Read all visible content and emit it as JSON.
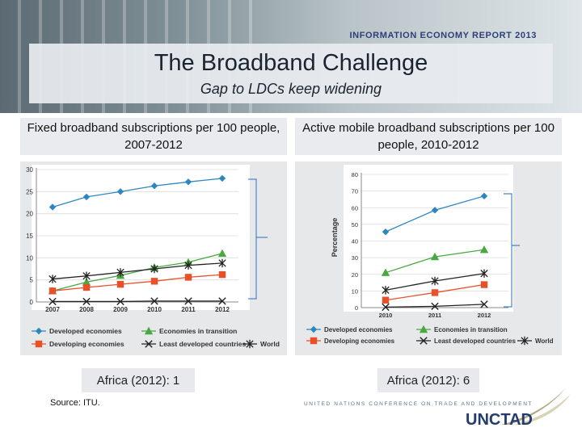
{
  "header": {
    "report_title": "INFORMATION ECONOMY REPORT 2013",
    "title": "The Broadband Challenge",
    "subtitle": "Gap to LDCs keep widening"
  },
  "colors": {
    "developed": "#2e86c1",
    "transition": "#4aa840",
    "developing": "#e8502a",
    "ldc": "#222222",
    "world": "#222222",
    "bracket": "#4a86c8"
  },
  "chart_data": [
    {
      "type": "line",
      "title": "Fixed broadband subscriptions per 100 people, 2007-2012",
      "x": [
        "2007",
        "2008",
        "2009",
        "2010",
        "2011",
        "2012"
      ],
      "ylim": [
        0,
        30
      ],
      "yticks": [
        "0",
        "5",
        "10",
        "15",
        "20",
        "25",
        "30"
      ],
      "ylabel": "",
      "xlabel": "",
      "grid": true,
      "series": [
        {
          "name": "Developed economies",
          "marker": "diamond",
          "color": "#2e86c1",
          "values": [
            21.5,
            23.8,
            25.0,
            26.3,
            27.2,
            28.0
          ]
        },
        {
          "name": "Economies in transition",
          "marker": "triangle",
          "color": "#4aa840",
          "values": [
            2.5,
            4.5,
            6.0,
            7.8,
            9.0,
            11.0
          ]
        },
        {
          "name": "Developing economies",
          "marker": "square",
          "color": "#e8502a",
          "values": [
            2.5,
            3.3,
            4.0,
            4.7,
            5.6,
            6.2
          ]
        },
        {
          "name": "Least developed countries",
          "marker": "x",
          "color": "#222222",
          "values": [
            0.1,
            0.1,
            0.1,
            0.2,
            0.2,
            0.2
          ]
        },
        {
          "name": "World",
          "marker": "star",
          "color": "#222222",
          "values": [
            5.2,
            5.9,
            6.7,
            7.5,
            8.3,
            8.8
          ]
        }
      ],
      "legend_labels": [
        "Developed economies",
        "Economies in transition",
        "Developing economies",
        "Least developed countries",
        "World"
      ],
      "note": "Africa (2012): 1"
    },
    {
      "type": "line",
      "title": "Active mobile broadband subscriptions per 100 people, 2010-2012",
      "x": [
        "2010",
        "2011",
        "2012"
      ],
      "ylim": [
        0,
        80
      ],
      "yticks": [
        "0",
        "10",
        "20",
        "30",
        "40",
        "50",
        "60",
        "70",
        "80"
      ],
      "ylabel": "Percentage",
      "xlabel": "",
      "grid": true,
      "series": [
        {
          "name": "Developed economies",
          "marker": "diamond",
          "color": "#2e86c1",
          "values": [
            45.5,
            58.5,
            67.0
          ]
        },
        {
          "name": "Economies in transition",
          "marker": "triangle",
          "color": "#4aa840",
          "values": [
            21.0,
            30.5,
            34.8
          ]
        },
        {
          "name": "Developing economies",
          "marker": "square",
          "color": "#e8502a",
          "values": [
            4.5,
            9.0,
            13.8
          ]
        },
        {
          "name": "Least developed countries",
          "marker": "x",
          "color": "#222222",
          "values": [
            0.3,
            0.8,
            2.0
          ]
        },
        {
          "name": "World",
          "marker": "star",
          "color": "#222222",
          "values": [
            10.5,
            16.0,
            20.5
          ]
        }
      ],
      "legend_labels": [
        "Developed economies",
        "Economies in transition",
        "Developing economies",
        "Least developed countries",
        "World"
      ],
      "note": "Africa (2012):  6"
    }
  ],
  "source": "Source: ITU.",
  "footer": {
    "org": "UNITED NATIONS CONFERENCE ON TRADE AND DEVELOPMENT",
    "logo": "UNCTAD"
  }
}
